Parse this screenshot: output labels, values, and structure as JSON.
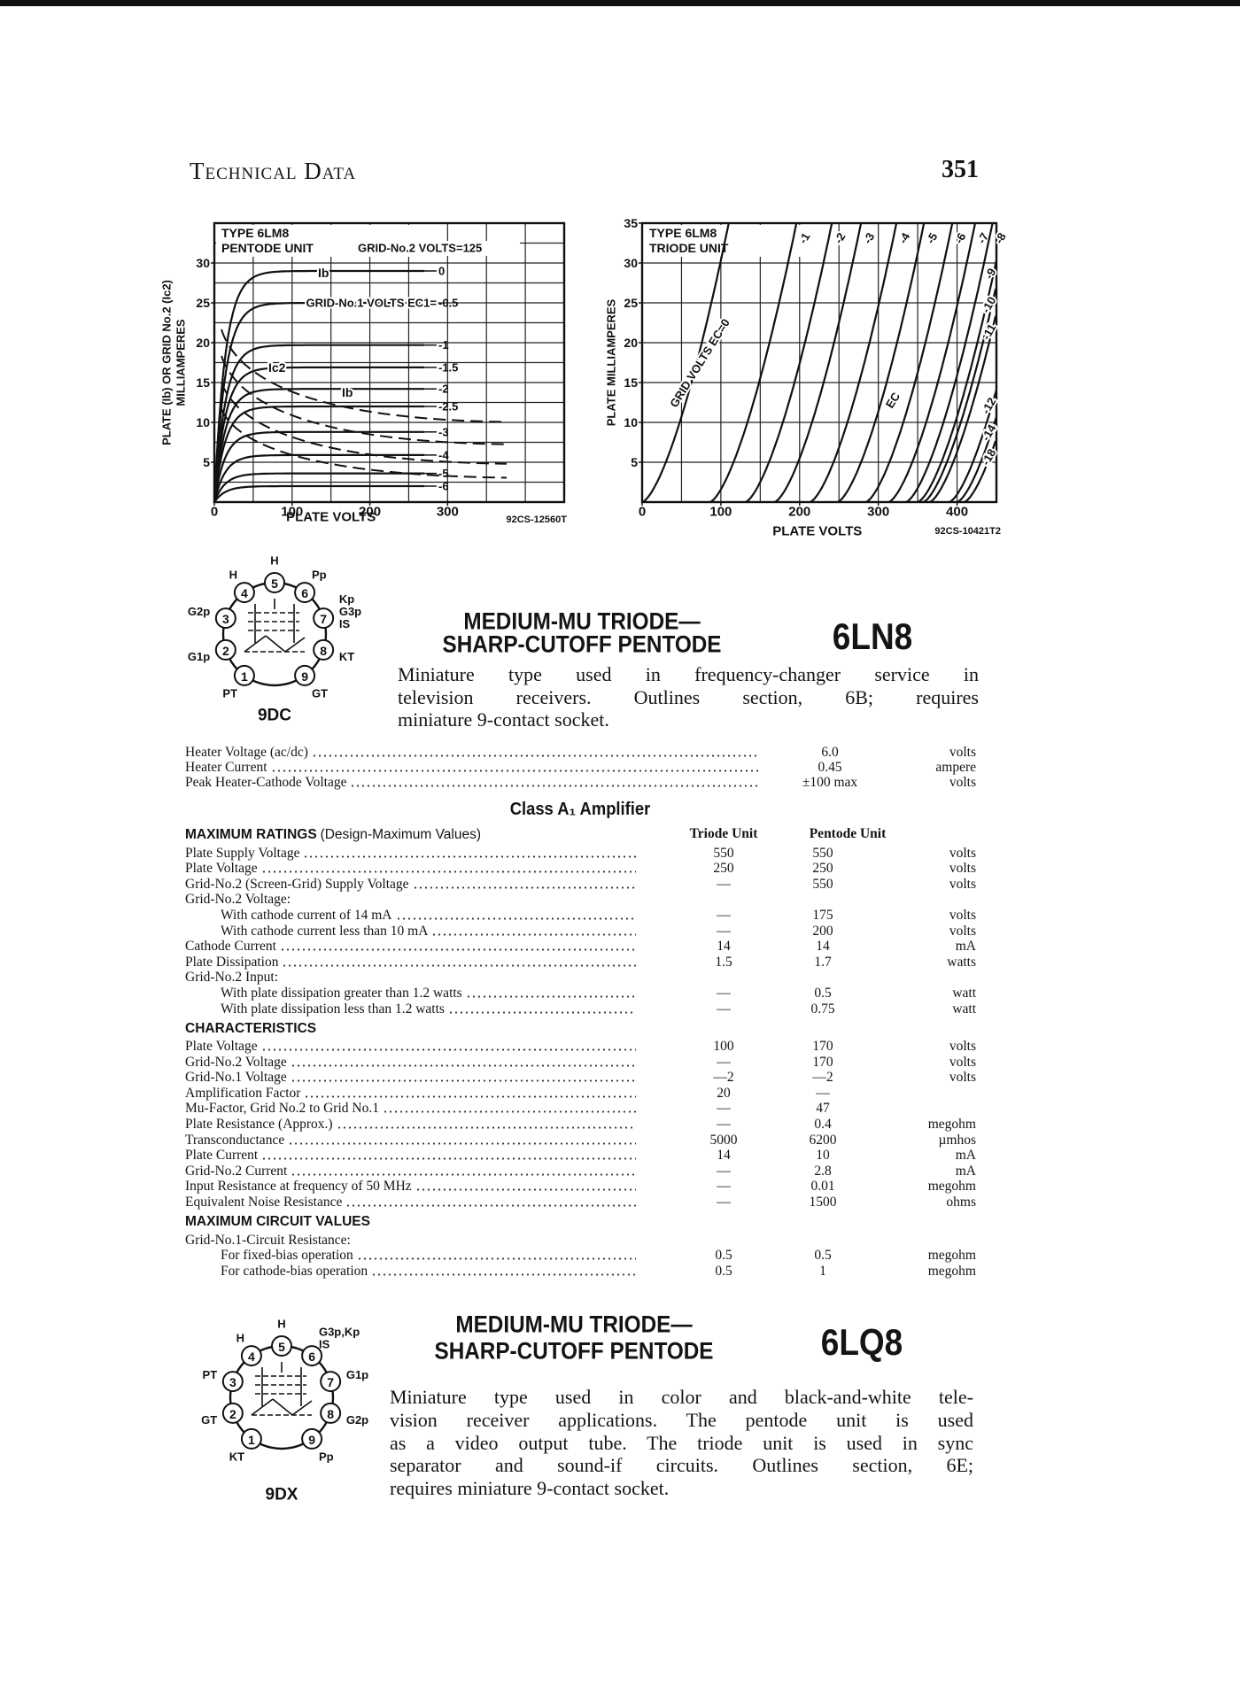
{
  "header": {
    "title": "Technical Data",
    "page": 351
  },
  "graphs": [
    {
      "title_lines": [
        "TYPE 6LM8",
        "PENTODE UNIT"
      ],
      "note": "GRID-No.2 VOLTS=125",
      "y_label_lines": [
        "PLATE (Ib) OR GRID No.2 (Ic2)",
        "MILLIAMPERES"
      ],
      "x_label": "PLATE VOLTS",
      "code": "92CS-12560T",
      "xlim": [
        0,
        450
      ],
      "ylim": [
        0,
        35
      ],
      "xticks": [
        0,
        100,
        200,
        300
      ],
      "yticks": [
        5,
        10,
        15,
        20,
        25,
        30
      ],
      "minor_grid": "xy",
      "curve_title": "GRID-No.1 VOLTS EC1=",
      "current_labels": [
        "Ib",
        "Ib",
        "Ic2"
      ],
      "curves": [
        {
          "label": "0",
          "plate_ma": 29
        },
        {
          "label": "-0.5",
          "plate_ma": 25
        },
        {
          "label": "-1",
          "plate_ma": 19.7
        },
        {
          "label": "-1.5",
          "plate_ma": 16.9
        },
        {
          "label": "-2",
          "plate_ma": 14.2
        },
        {
          "label": "-2.5",
          "plate_ma": 12
        },
        {
          "label": "-3",
          "plate_ma": 8.8
        },
        {
          "label": "-4",
          "plate_ma": 5.9
        },
        {
          "label": "-5",
          "plate_ma": 3.6
        },
        {
          "label": "-6",
          "plate_ma": 2
        }
      ]
    },
    {
      "title_lines": [
        "TYPE 6LM8",
        "TRIODE UNIT"
      ],
      "y_label_lines": [
        "PLATE MILLIAMPERES"
      ],
      "x_label": "PLATE VOLTS",
      "code": "92CS-10421T2",
      "xlim": [
        0,
        450
      ],
      "ylim": [
        0,
        35
      ],
      "xticks": [
        0,
        100,
        200,
        300,
        400
      ],
      "yticks": [
        5,
        10,
        15,
        20,
        25,
        30,
        35
      ],
      "minor_grid": "x",
      "curve_title": "GRID VOLTS EC=0",
      "curve_note": "EC",
      "curves": [
        {
          "cutoff_volts": 0
        },
        {
          "label": "-1",
          "cutoff_volts": 86
        },
        {
          "label": "-2",
          "cutoff_volts": 131
        },
        {
          "label": "-3",
          "cutoff_volts": 168
        },
        {
          "label": "-4",
          "cutoff_volts": 213
        },
        {
          "label": "-5",
          "cutoff_volts": 248
        },
        {
          "label": "-6",
          "cutoff_volts": 284
        },
        {
          "label": "-7",
          "cutoff_volts": 313
        },
        {
          "label": "-8",
          "cutoff_volts": 335
        },
        {
          "label": "-9",
          "cutoff_volts": 350
        },
        {
          "label": "-10",
          "cutoff_volts": 357
        },
        {
          "label": "-11",
          "cutoff_volts": 365
        },
        {
          "label": "-12",
          "cutoff_volts": 390
        },
        {
          "label": "-14",
          "cutoff_volts": 400
        },
        {
          "label": "-18",
          "cutoff_volts": 409
        }
      ]
    }
  ],
  "tubes": [
    {
      "title_lines": [
        "MEDIUM-MU TRIODE—",
        "SHARP-CUTOFF PENTODE"
      ],
      "type": "6LN8",
      "description_lines": [
        "Miniature type used in frequency-changer service in",
        "television receivers. Outlines section, 6B; requires",
        "miniature 9-contact socket."
      ],
      "basing": {
        "code": "9DC",
        "pins": [
          {
            "number": 1,
            "labels": [
              "PT"
            ]
          },
          {
            "number": 2,
            "labels": [
              "G1p"
            ]
          },
          {
            "number": 3,
            "labels": [
              "G2p"
            ]
          },
          {
            "number": 4,
            "labels": [
              "H"
            ]
          },
          {
            "number": 5,
            "labels": [
              "H"
            ]
          },
          {
            "number": 6,
            "labels": [
              "Pp"
            ]
          },
          {
            "number": 7,
            "labels": [
              "Kp",
              "G3p",
              "IS"
            ]
          },
          {
            "number": 8,
            "labels": [
              "KT"
            ]
          },
          {
            "number": 9,
            "labels": [
              "GT"
            ]
          }
        ]
      },
      "specs": {
        "heater": [
          {
            "label": "Heater Voltage (ac/dc)",
            "value": "6.0",
            "unit": "volts"
          },
          {
            "label": "Heater Current",
            "value": 0.45,
            "unit": "ampere"
          },
          {
            "label": "Peak Heater-Cathode Voltage",
            "value": "±100 max",
            "unit": "volts"
          }
        ],
        "class": "Class A₁ Amplifier",
        "columns": [
          "Triode Unit",
          "Pentode Unit"
        ],
        "groups": [
          {
            "heading": "MAXIMUM RATINGS",
            "note": "(Design-Maximum Values)",
            "rows": [
              {
                "label": "Plate Supply Voltage",
                "triode": 550,
                "pentode": 550,
                "unit": "volts"
              },
              {
                "label": "Plate Voltage",
                "triode": 250,
                "pentode": 250,
                "unit": "volts"
              },
              {
                "label": "Grid-No.2 (Screen-Grid) Supply Voltage",
                "triode": "—",
                "pentode": 550,
                "unit": "volts"
              },
              {
                "label": "Grid-No.2 Voltage:"
              },
              {
                "label": "With cathode current of 14 mA",
                "indent": true,
                "triode": "—",
                "pentode": 175,
                "unit": "volts"
              },
              {
                "label": "With cathode current less than 10 mA",
                "indent": true,
                "triode": "—",
                "pentode": 200,
                "unit": "volts"
              },
              {
                "label": "Cathode Current",
                "triode": 14,
                "pentode": 14,
                "unit": "mA"
              },
              {
                "label": "Plate Dissipation",
                "triode": 1.5,
                "pentode": 1.7,
                "unit": "watts"
              },
              {
                "label": "Grid-No.2 Input:"
              },
              {
                "label": "With plate dissipation greater than 1.2 watts",
                "indent": true,
                "triode": "—",
                "pentode": 0.5,
                "unit": "watt"
              },
              {
                "label": "With plate dissipation less than 1.2 watts",
                "indent": true,
                "triode": "—",
                "pentode": 0.75,
                "unit": "watt"
              }
            ]
          },
          {
            "heading": "CHARACTERISTICS",
            "rows": [
              {
                "label": "Plate Voltage",
                "triode": 100,
                "pentode": 170,
                "unit": "volts"
              },
              {
                "label": "Grid-No.2 Voltage",
                "triode": "—",
                "pentode": 170,
                "unit": "volts"
              },
              {
                "label": "Grid-No.1 Voltage",
                "triode": "—2",
                "pentode": "—2",
                "unit": "volts"
              },
              {
                "label": "Amplification Factor",
                "triode": 20,
                "pentode": "—"
              },
              {
                "label": "Mu-Factor, Grid No.2 to Grid No.1",
                "triode": "—",
                "pentode": 47
              },
              {
                "label": "Plate Resistance (Approx.)",
                "triode": "—",
                "pentode": 0.4,
                "unit": "megohm"
              },
              {
                "label": "Transconductance",
                "triode": 5000,
                "pentode": 6200,
                "unit": "µmhos"
              },
              {
                "label": "Plate Current",
                "triode": 14,
                "pentode": 10,
                "unit": "mA"
              },
              {
                "label": "Grid-No.2 Current",
                "triode": "—",
                "pentode": 2.8,
                "unit": "mA"
              },
              {
                "label": "Input Resistance at frequency of 50 MHz",
                "triode": "—",
                "pentode": 0.01,
                "unit": "megohm"
              },
              {
                "label": "Equivalent Noise Resistance",
                "triode": "—",
                "pentode": 1500,
                "unit": "ohms"
              }
            ]
          },
          {
            "heading": "MAXIMUM CIRCUIT VALUES",
            "rows": [
              {
                "label": "Grid-No.1-Circuit Resistance:"
              },
              {
                "label": "For fixed-bias operation",
                "indent": true,
                "triode": 0.5,
                "pentode": 0.5,
                "unit": "megohm"
              },
              {
                "label": "For cathode-bias operation",
                "indent": true,
                "triode": 0.5,
                "pentode": 1,
                "unit": "megohm"
              }
            ]
          }
        ]
      }
    },
    {
      "title_lines": [
        "MEDIUM-MU TRIODE—",
        "SHARP-CUTOFF PENTODE"
      ],
      "type": "6LQ8",
      "description_lines": [
        "Miniature type used in color and black-and-white tele-",
        "vision receiver applications. The pentode unit is used",
        "as a video output tube. The triode unit is used in sync",
        "separator and sound-if circuits. Outlines section, 6E;",
        "requires miniature 9-contact socket."
      ],
      "basing": {
        "code": "9DX",
        "pins": [
          {
            "number": 1,
            "labels": [
              "KT"
            ]
          },
          {
            "number": 2,
            "labels": [
              "GT"
            ]
          },
          {
            "number": 3,
            "labels": [
              "PT"
            ]
          },
          {
            "number": 4,
            "labels": [
              "H"
            ]
          },
          {
            "number": 5,
            "labels": [
              "H"
            ]
          },
          {
            "number": 6,
            "labels": [
              "G3p,Kp",
              "IS"
            ]
          },
          {
            "number": 7,
            "labels": [
              "G1p"
            ]
          },
          {
            "number": 8,
            "labels": [
              "G2p"
            ]
          },
          {
            "number": 9,
            "labels": [
              "Pp"
            ]
          }
        ]
      }
    }
  ]
}
